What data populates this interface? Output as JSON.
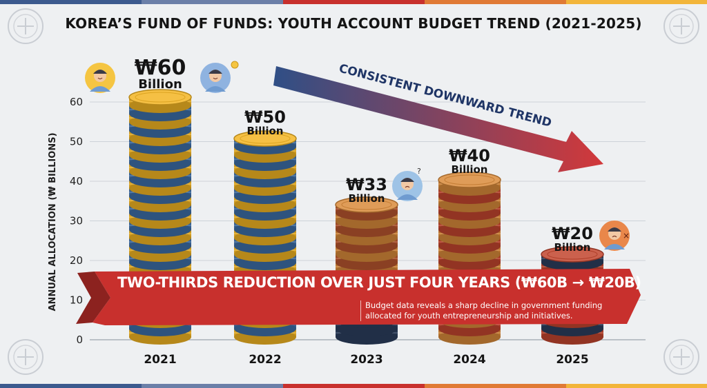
{
  "title": "KOREA’S FUND OF FUNDS: YOUTH ACCOUNT BUDGET TREND (2021-2025)",
  "colors": {
    "background": "#eef0f2",
    "banner": "#c8302d",
    "arrow_start": "#2f4f86",
    "arrow_end": "#d2383a",
    "coin_gold": "#f3b523",
    "coin_blue": "#3d6fa8",
    "coin_orange": "#d98a3a",
    "coin_red": "#c2452e",
    "coin_navy": "#2c3f5e"
  },
  "chart_data": {
    "type": "bar",
    "title": "KOREA’S FUND OF FUNDS: YOUTH ACCOUNT BUDGET TREND (2021-2025)",
    "xlabel": "",
    "ylabel": "ANNUAL ALLOCATION (₩ BILLIONS)",
    "categories": [
      "2021",
      "2022",
      "2023",
      "2024",
      "2025"
    ],
    "values": [
      60,
      50,
      33,
      40,
      20
    ],
    "value_labels": [
      "₩60",
      "₩50",
      "₩33",
      "₩40",
      "₩20"
    ],
    "value_unit": "Billion",
    "ylim": [
      0,
      60
    ],
    "yticks": [
      0,
      10,
      20,
      30,
      40,
      50,
      60
    ],
    "grid": true,
    "legend": "none",
    "annotations": {
      "trend": "CONSISTENT DOWNWARD TREND",
      "banner": "TWO-THIRDS REDUCTION OVER JUST FOUR YEARS (₩60B → ₩20B)",
      "banner_sub": "Budget data reveals a sharp decline in government funding allocated for youth entrepreneurship and initiatives."
    }
  }
}
